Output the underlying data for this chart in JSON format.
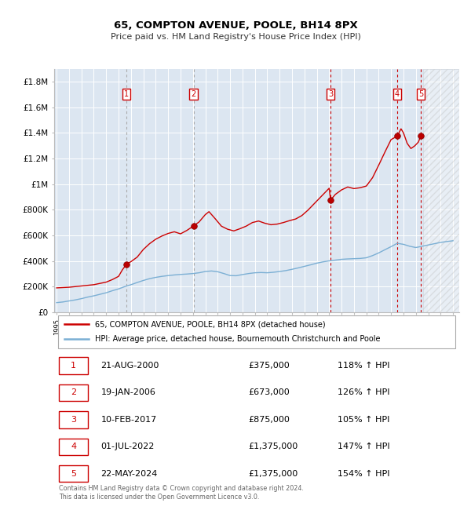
{
  "title": "65, COMPTON AVENUE, POOLE, BH14 8PX",
  "subtitle": "Price paid vs. HM Land Registry's House Price Index (HPI)",
  "red_line_color": "#cc0000",
  "blue_line_color": "#7bafd4",
  "background_color": "#ffffff",
  "chart_bg_color": "#dce6f1",
  "grid_color": "#ffffff",
  "sale_points": [
    {
      "date_num": 2000.64,
      "price": 375000,
      "label": "1"
    },
    {
      "date_num": 2006.05,
      "price": 673000,
      "label": "2"
    },
    {
      "date_num": 2017.11,
      "price": 875000,
      "label": "3"
    },
    {
      "date_num": 2022.5,
      "price": 1375000,
      "label": "4"
    },
    {
      "date_num": 2024.39,
      "price": 1375000,
      "label": "5"
    }
  ],
  "grey_vlines": [
    2000.64,
    2006.05
  ],
  "red_vlines": [
    2017.11,
    2022.5,
    2024.39
  ],
  "legend_entries": [
    "65, COMPTON AVENUE, POOLE, BH14 8PX (detached house)",
    "HPI: Average price, detached house, Bournemouth Christchurch and Poole"
  ],
  "table_rows": [
    {
      "num": "1",
      "date": "21-AUG-2000",
      "price": "£375,000",
      "hpi": "118% ↑ HPI"
    },
    {
      "num": "2",
      "date": "19-JAN-2006",
      "price": "£673,000",
      "hpi": "126% ↑ HPI"
    },
    {
      "num": "3",
      "date": "10-FEB-2017",
      "price": "£875,000",
      "hpi": "105% ↑ HPI"
    },
    {
      "num": "4",
      "date": "01-JUL-2022",
      "price": "£1,375,000",
      "hpi": "147% ↑ HPI"
    },
    {
      "num": "5",
      "date": "22-MAY-2024",
      "price": "£1,375,000",
      "hpi": "154% ↑ HPI"
    }
  ],
  "footer": "Contains HM Land Registry data © Crown copyright and database right 2024.\nThis data is licensed under the Open Government Licence v3.0.",
  "ylim": [
    0,
    1900000
  ],
  "xlim_start": 1994.8,
  "xlim_end": 2027.5,
  "yticks": [
    0,
    200000,
    400000,
    600000,
    800000,
    1000000,
    1200000,
    1400000,
    1600000,
    1800000
  ],
  "ytick_labels": [
    "£0",
    "£200K",
    "£400K",
    "£600K",
    "£800K",
    "£1M",
    "£1.2M",
    "£1.4M",
    "£1.6M",
    "£1.8M"
  ],
  "hatch_start": 2024.6,
  "red_points_x": [
    1995.0,
    1996.0,
    1997.0,
    1998.0,
    1999.0,
    1999.5,
    2000.0,
    2000.3,
    2000.64,
    2001.0,
    2001.5,
    2002.0,
    2002.5,
    2003.0,
    2003.5,
    2004.0,
    2004.5,
    2005.0,
    2005.5,
    2006.05,
    2006.5,
    2007.0,
    2007.3,
    2007.8,
    2008.3,
    2008.8,
    2009.3,
    2009.8,
    2010.3,
    2010.8,
    2011.3,
    2011.8,
    2012.3,
    2012.8,
    2013.3,
    2013.8,
    2014.3,
    2014.8,
    2015.3,
    2015.8,
    2016.3,
    2016.8,
    2017.0,
    2017.11,
    2017.5,
    2018.0,
    2018.5,
    2019.0,
    2019.5,
    2020.0,
    2020.5,
    2021.0,
    2021.5,
    2022.0,
    2022.5,
    2022.8,
    2023.0,
    2023.3,
    2023.6,
    2023.9,
    2024.2,
    2024.39,
    2024.6
  ],
  "red_points_y": [
    190000,
    195000,
    205000,
    215000,
    235000,
    255000,
    280000,
    330000,
    375000,
    395000,
    430000,
    490000,
    535000,
    570000,
    595000,
    615000,
    628000,
    612000,
    638000,
    673000,
    705000,
    762000,
    785000,
    730000,
    672000,
    648000,
    635000,
    652000,
    672000,
    700000,
    712000,
    695000,
    683000,
    688000,
    700000,
    715000,
    728000,
    755000,
    798000,
    848000,
    898000,
    948000,
    968000,
    875000,
    920000,
    955000,
    978000,
    965000,
    972000,
    985000,
    1050000,
    1148000,
    1250000,
    1348000,
    1375000,
    1432000,
    1400000,
    1318000,
    1278000,
    1298000,
    1328000,
    1375000,
    1368000
  ],
  "blue_points_x": [
    1995.0,
    1995.5,
    1996.0,
    1996.5,
    1997.0,
    1997.5,
    1998.0,
    1998.5,
    1999.0,
    1999.5,
    2000.0,
    2000.5,
    2001.0,
    2001.5,
    2002.0,
    2002.5,
    2003.0,
    2003.5,
    2004.0,
    2004.5,
    2005.0,
    2005.5,
    2006.0,
    2006.5,
    2007.0,
    2007.5,
    2008.0,
    2008.5,
    2009.0,
    2009.5,
    2010.0,
    2010.5,
    2011.0,
    2011.5,
    2012.0,
    2012.5,
    2013.0,
    2013.5,
    2014.0,
    2014.5,
    2015.0,
    2015.5,
    2016.0,
    2016.5,
    2017.0,
    2017.5,
    2018.0,
    2018.5,
    2019.0,
    2019.5,
    2020.0,
    2020.5,
    2021.0,
    2021.5,
    2022.0,
    2022.5,
    2023.0,
    2023.5,
    2024.0,
    2024.5,
    2025.0,
    2025.5,
    2026.0,
    2026.5,
    2027.0
  ],
  "blue_points_y": [
    75000,
    80000,
    88000,
    96000,
    106000,
    118000,
    128000,
    140000,
    152000,
    168000,
    182000,
    200000,
    215000,
    232000,
    248000,
    262000,
    272000,
    280000,
    286000,
    291000,
    295000,
    298000,
    302000,
    308000,
    318000,
    322000,
    316000,
    302000,
    286000,
    285000,
    294000,
    302000,
    308000,
    310000,
    308000,
    312000,
    318000,
    325000,
    335000,
    346000,
    358000,
    370000,
    383000,
    393000,
    401000,
    407000,
    413000,
    416000,
    418000,
    420000,
    425000,
    442000,
    463000,
    488000,
    512000,
    538000,
    530000,
    515000,
    505000,
    515000,
    525000,
    535000,
    545000,
    552000,
    558000
  ]
}
